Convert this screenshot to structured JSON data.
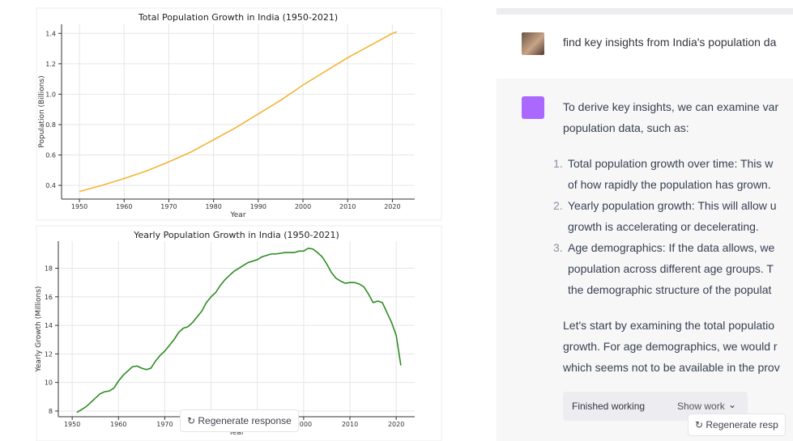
{
  "chart_data": [
    {
      "type": "line",
      "title": "Total Population Growth in India (1950-2021)",
      "x_label": "Year",
      "y_label": "Population (Billions)",
      "x": [
        1950,
        1955,
        1960,
        1965,
        1970,
        1975,
        1980,
        1985,
        1990,
        1995,
        2000,
        2005,
        2010,
        2015,
        2020,
        2021
      ],
      "series": [
        {
          "color": "#f5b335",
          "values": [
            0.36,
            0.4,
            0.445,
            0.495,
            0.555,
            0.62,
            0.7,
            0.78,
            0.87,
            0.96,
            1.06,
            1.15,
            1.24,
            1.32,
            1.4,
            1.41
          ]
        }
      ],
      "xlim": [
        1946,
        2025
      ],
      "xticks": [
        1950,
        1960,
        1970,
        1980,
        1990,
        2000,
        2010,
        2020
      ],
      "ylim": [
        0.31,
        1.46
      ],
      "yticks": [
        0.4,
        0.6,
        0.8,
        {
          "value": 1,
          "label": "1.0"
        },
        1.2,
        1.4
      ],
      "grid": true
    },
    {
      "type": "line",
      "title": "Yearly Population Growth in India (1950-2021)",
      "x_label": "Year",
      "y_label": "Yearly Growth (Millions)",
      "x": [
        1951,
        1952,
        1953,
        1954,
        1955,
        1956,
        1957,
        1958,
        1959,
        1960,
        1961,
        1962,
        1963,
        1964,
        1965,
        1966,
        1967,
        1968,
        1969,
        1970,
        1971,
        1972,
        1973,
        1974,
        1975,
        1976,
        1977,
        1978,
        1979,
        1980,
        1981,
        1982,
        1983,
        1984,
        1985,
        1986,
        1987,
        1988,
        1989,
        1990,
        1991,
        1992,
        1993,
        1994,
        1995,
        1996,
        1997,
        1998,
        1999,
        2000,
        2001,
        2002,
        2003,
        2004,
        2005,
        2006,
        2007,
        2008,
        2009,
        2010,
        2011,
        2012,
        2013,
        2014,
        2015,
        2016,
        2017,
        2018,
        2019,
        2020,
        2021
      ],
      "series": [
        {
          "color": "#2e8b22",
          "values": [
            7.9,
            8.1,
            8.3,
            8.6,
            8.9,
            9.2,
            9.35,
            9.4,
            9.6,
            10.1,
            10.5,
            10.8,
            11.1,
            11.15,
            11.0,
            10.9,
            11.0,
            11.5,
            11.9,
            12.2,
            12.6,
            13.0,
            13.5,
            13.8,
            13.9,
            14.2,
            14.6,
            15.0,
            15.6,
            16.0,
            16.3,
            16.8,
            17.2,
            17.5,
            17.8,
            18.0,
            18.2,
            18.4,
            18.5,
            18.6,
            18.8,
            18.9,
            19.0,
            19.0,
            19.05,
            19.1,
            19.1,
            19.1,
            19.2,
            19.2,
            19.4,
            19.35,
            19.1,
            18.8,
            18.3,
            17.7,
            17.3,
            17.1,
            16.95,
            17.0,
            17.0,
            16.9,
            16.7,
            16.2,
            15.6,
            15.7,
            15.6,
            14.9,
            14.2,
            13.3,
            11.2
          ]
        }
      ],
      "xlim": [
        1947,
        2024
      ],
      "xticks": [
        1950,
        1960,
        1970,
        1980,
        1990,
        2000,
        2010,
        2020
      ],
      "ylim": [
        7.6,
        19.9
      ],
      "yticks": [
        8,
        10,
        12,
        14,
        16,
        18
      ],
      "grid": true
    }
  ],
  "chat": {
    "user_message": "find key insights from India's population da",
    "intro": [
      "To derive key insights, we can examine var",
      "population data, such as:"
    ],
    "items": [
      {
        "number": "1.",
        "lines": [
          "Total population growth over time: This w",
          "of how rapidly the population has grown."
        ]
      },
      {
        "number": "2.",
        "lines": [
          "Yearly population growth: This will allow u",
          "growth is accelerating or decelerating."
        ]
      },
      {
        "number": "3.",
        "lines": [
          "Age demographics: If the data allows, we",
          "population across different age groups. T",
          "the demographic structure of the populat"
        ]
      }
    ],
    "outro": [
      "Let's start by examining the total populatio",
      "growth. For age demographics, we would r",
      "which seems not to be available in the prov"
    ],
    "status": "Finished working",
    "show_work": "Show work",
    "regenerate_right": "Regenerate resp",
    "regenerate_left": "Regenerate response"
  }
}
